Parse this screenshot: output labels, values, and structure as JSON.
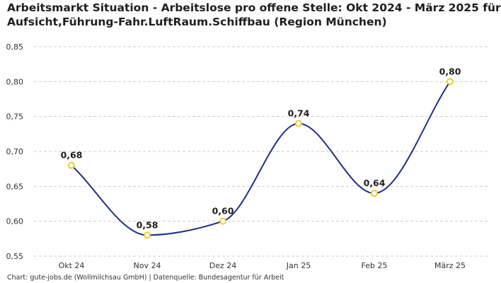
{
  "title_line1": "Arbeitsmarkt Situation - Arbeitslose pro offene Stelle: Okt 2024 - März 2025 für",
  "title_line2": "Aufsicht,Führung-Fahr.LuftRaum.Schiffbau (Region München)",
  "source": "Chart: gute-jobs.de (Wollmilchsau GmbH) | Datenquelle: Bundesagentur für Arbeit",
  "colors": {
    "line": "#1f2f8a",
    "marker_stroke": "#f2c618",
    "marker_fill": "#ffffff",
    "grid": "#cccccc"
  },
  "chart_data": {
    "type": "line",
    "title": "Arbeitsmarkt Situation - Arbeitslose pro offene Stelle: Okt 2024 - März 2025 für Aufsicht,Führung-Fahr.LuftRaum.Schiffbau (Region München)",
    "categories": [
      "Okt 24",
      "Nov 24",
      "Dez 24",
      "Jan 25",
      "Feb 25",
      "März 25"
    ],
    "series": [
      {
        "name": "Arbeitslose pro offene Stelle",
        "values": [
          0.68,
          0.58,
          0.6,
          0.74,
          0.64,
          0.8
        ]
      }
    ],
    "data_labels": [
      "0,68",
      "0,58",
      "0,60",
      "0,74",
      "0,64",
      "0,80"
    ],
    "yticks": [
      0.55,
      0.6,
      0.65,
      0.7,
      0.75,
      0.8,
      0.85
    ],
    "ytick_labels": [
      "0,55",
      "0,60",
      "0,65",
      "0,70",
      "0,75",
      "0,80",
      "0,85"
    ],
    "ylim": [
      0.55,
      0.85
    ],
    "xlabel": "",
    "ylabel": "",
    "grid": true,
    "smooth": true
  }
}
